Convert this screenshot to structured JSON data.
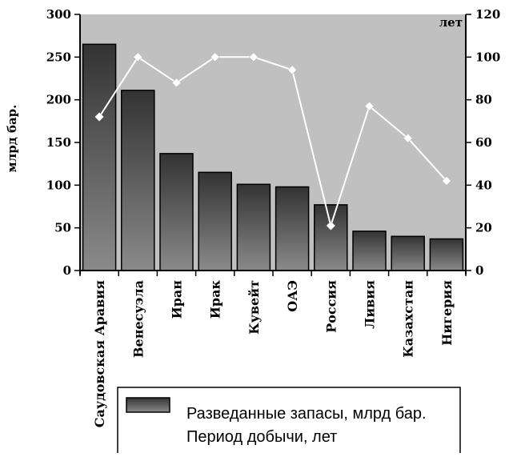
{
  "chart_data": {
    "type": "bar",
    "categories": [
      "Саудовская Аравия",
      "Венесуэла",
      "Иран",
      "Ирак",
      "Кувейт",
      "ОАЭ",
      "Россия",
      "Ливия",
      "Казахстан",
      "Нигерия"
    ],
    "series": [
      {
        "name": "Разведанные запасы, млрд бар.",
        "type": "bar",
        "axis": "left",
        "values": [
          265,
          211,
          137,
          115,
          101,
          98,
          77,
          46,
          40,
          37
        ]
      },
      {
        "name": "Период добычи, лет",
        "type": "line",
        "axis": "right",
        "values": [
          72,
          100,
          88,
          100,
          100,
          94,
          21,
          77,
          62,
          42
        ]
      }
    ],
    "ylabel": "млрд бар.",
    "y2label": "лет",
    "ylim": [
      0,
      300
    ],
    "y2lim": [
      0,
      120
    ],
    "yticks": [
      "0",
      "50",
      "100",
      "150",
      "200",
      "250",
      "300"
    ],
    "y2ticks": [
      "0",
      "20",
      "40",
      "60",
      "80",
      "100",
      "120"
    ],
    "grid": false,
    "legend_position": "bottom",
    "colors": {
      "plot_background": "#c0c0c0",
      "bar_top": "#333333",
      "bar_bottom": "#8a8a8a",
      "line": "#ffffff",
      "axis": "#000000"
    }
  }
}
